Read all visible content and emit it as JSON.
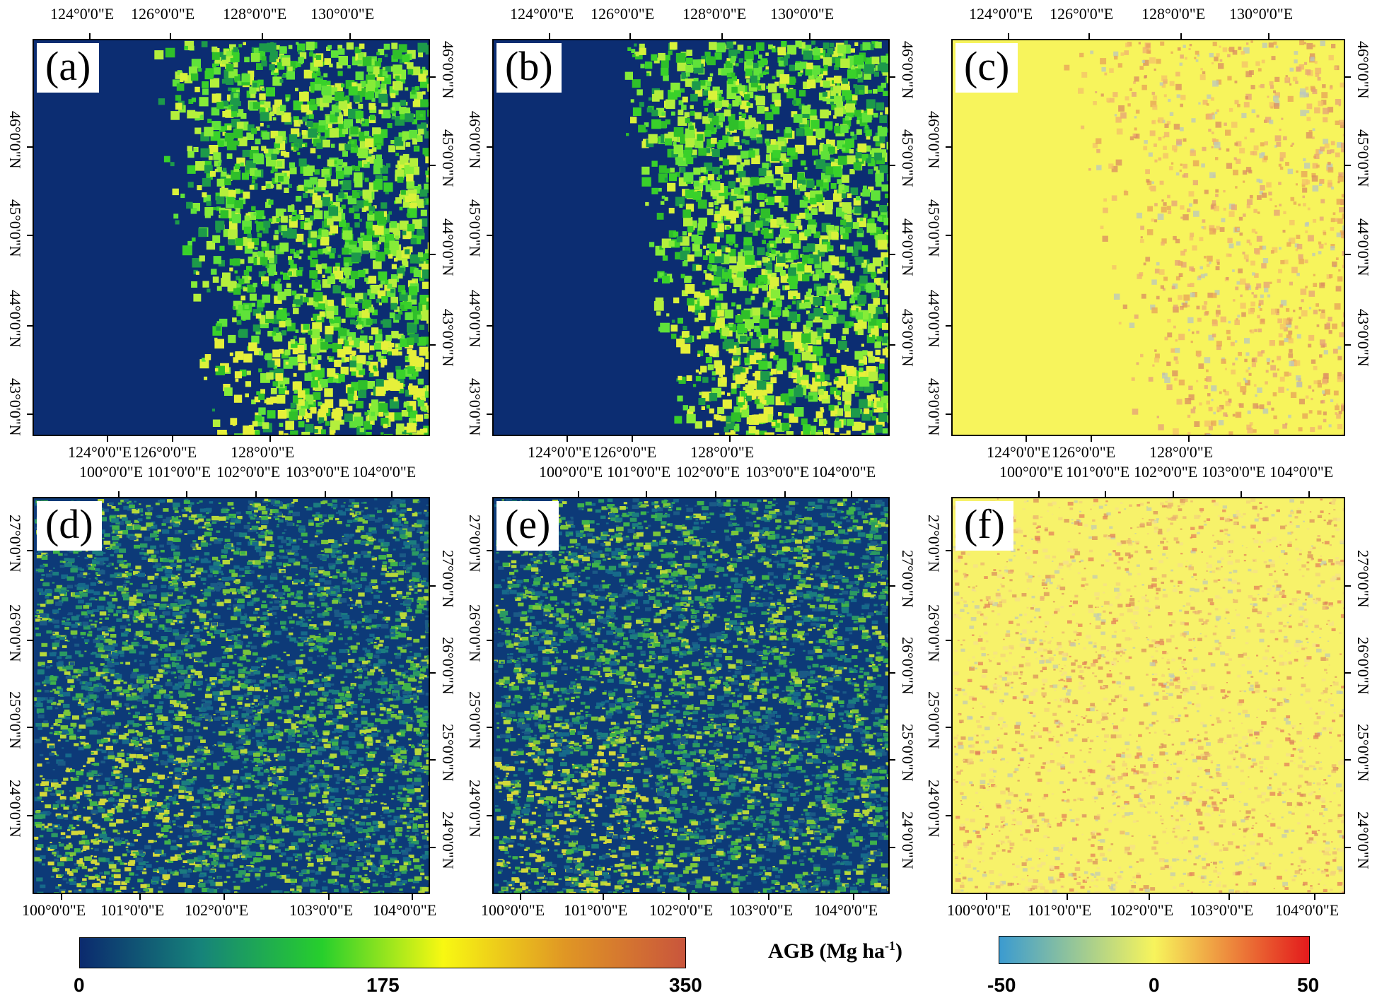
{
  "panels": [
    {
      "id": "a",
      "label": "(a)",
      "top_lon": [
        "124°0'0\"E",
        "126°0'0\"E",
        "128°0'0\"E",
        "130°0'0\"E"
      ],
      "bottom_lon": [
        "124°0'0\"E",
        "126°0'0\"E",
        "128°0'0\"E"
      ],
      "left_lat": [
        "46°0'0\"N",
        "45°0'0\"N",
        "44°0'0\"N",
        "43°0'0\"N"
      ],
      "right_lat": [
        "46°0'0\"N",
        "45°0'0\"N",
        "44°0'0\"N",
        "43°0'0\"N"
      ],
      "style": "agb_ne"
    },
    {
      "id": "b",
      "label": "(b)",
      "top_lon": [
        "124°0'0\"E",
        "126°0'0\"E",
        "128°0'0\"E",
        "130°0'0\"E"
      ],
      "bottom_lon": [
        "124°0'0\"E",
        "126°0'0\"E",
        "128°0'0\"E"
      ],
      "left_lat": [
        "46°0'0\"N",
        "45°0'0\"N",
        "44°0'0\"N",
        "43°0'0\"N"
      ],
      "right_lat": [
        "46°0'0\"N",
        "45°0'0\"N",
        "44°0'0\"N",
        "43°0'0\"N"
      ],
      "style": "agb_ne"
    },
    {
      "id": "c",
      "label": "(c)",
      "top_lon": [
        "124°0'0\"E",
        "126°0'0\"E",
        "128°0'0\"E",
        "130°0'0\"E"
      ],
      "bottom_lon": [
        "124°0'0\"E",
        "126°0'0\"E",
        "128°0'0\"E"
      ],
      "left_lat": [
        "46°0'0\"N",
        "45°0'0\"N",
        "44°0'0\"N",
        "43°0'0\"N"
      ],
      "right_lat": [
        "46°0'0\"N",
        "45°0'0\"N",
        "44°0'0\"N",
        "43°0'0\"N"
      ],
      "style": "diff_ne"
    },
    {
      "id": "d",
      "label": "(d)",
      "top_lon": [
        "100°0'0\"E",
        "101°0'0\"E",
        "102°0'0\"E",
        "103°0'0\"E",
        "104°0'0\"E"
      ],
      "bottom_lon": [
        "100°0'0\"E",
        "101°0'0\"E",
        "102°0'0\"E",
        "103°0'0\"E",
        "104°0'0\"E"
      ],
      "left_lat": [
        "27°0'0\"N",
        "26°0'0\"N",
        "25°0'0\"N",
        "24°0'0\"N"
      ],
      "right_lat": [
        "27°0'0\"N",
        "26°0'0\"N",
        "25°0'0\"N",
        "24°0'0\"N"
      ],
      "style": "agb_sw"
    },
    {
      "id": "e",
      "label": "(e)",
      "top_lon": [
        "100°0'0\"E",
        "101°0'0\"E",
        "102°0'0\"E",
        "103°0'0\"E",
        "104°0'0\"E"
      ],
      "bottom_lon": [
        "100°0'0\"E",
        "101°0'0\"E",
        "102°0'0\"E",
        "103°0'0\"E",
        "104°0'0\"E"
      ],
      "left_lat": [
        "27°0'0\"N",
        "26°0'0\"N",
        "25°0'0\"N",
        "24°0'0\"N"
      ],
      "right_lat": [
        "27°0'0\"N",
        "26°0'0\"N",
        "25°0'0\"N",
        "24°0'0\"N"
      ],
      "style": "agb_sw"
    },
    {
      "id": "f",
      "label": "(f)",
      "top_lon": [
        "100°0'0\"E",
        "101°0'0\"E",
        "102°0'0\"E",
        "103°0'0\"E",
        "104°0'0\"E"
      ],
      "bottom_lon": [
        "100°0'0\"E",
        "101°0'0\"E",
        "102°0'0\"E",
        "103°0'0\"E",
        "104°0'0\"E"
      ],
      "left_lat": [
        "27°0'0\"N",
        "26°0'0\"N",
        "25°0'0\"N",
        "24°0'0\"N"
      ],
      "right_lat": [
        "27°0'0\"N",
        "26°0'0\"N",
        "25°0'0\"N",
        "24°0'0\"N"
      ],
      "style": "diff_sw"
    }
  ],
  "legend_agb": {
    "title": "AGB (Mg ha",
    "title_sup": "-1",
    "title_close": ")",
    "ticks": [
      "0",
      "175",
      "350"
    ],
    "colors": [
      "#0b2a6e",
      "#16837a",
      "#27cf2c",
      "#f8f812",
      "#e09724",
      "#c9553c"
    ]
  },
  "legend_diff": {
    "ticks": [
      "-50",
      "0",
      "50"
    ],
    "colors": [
      "#3b9bd0",
      "#f7f45c",
      "#e31a1c"
    ]
  }
}
